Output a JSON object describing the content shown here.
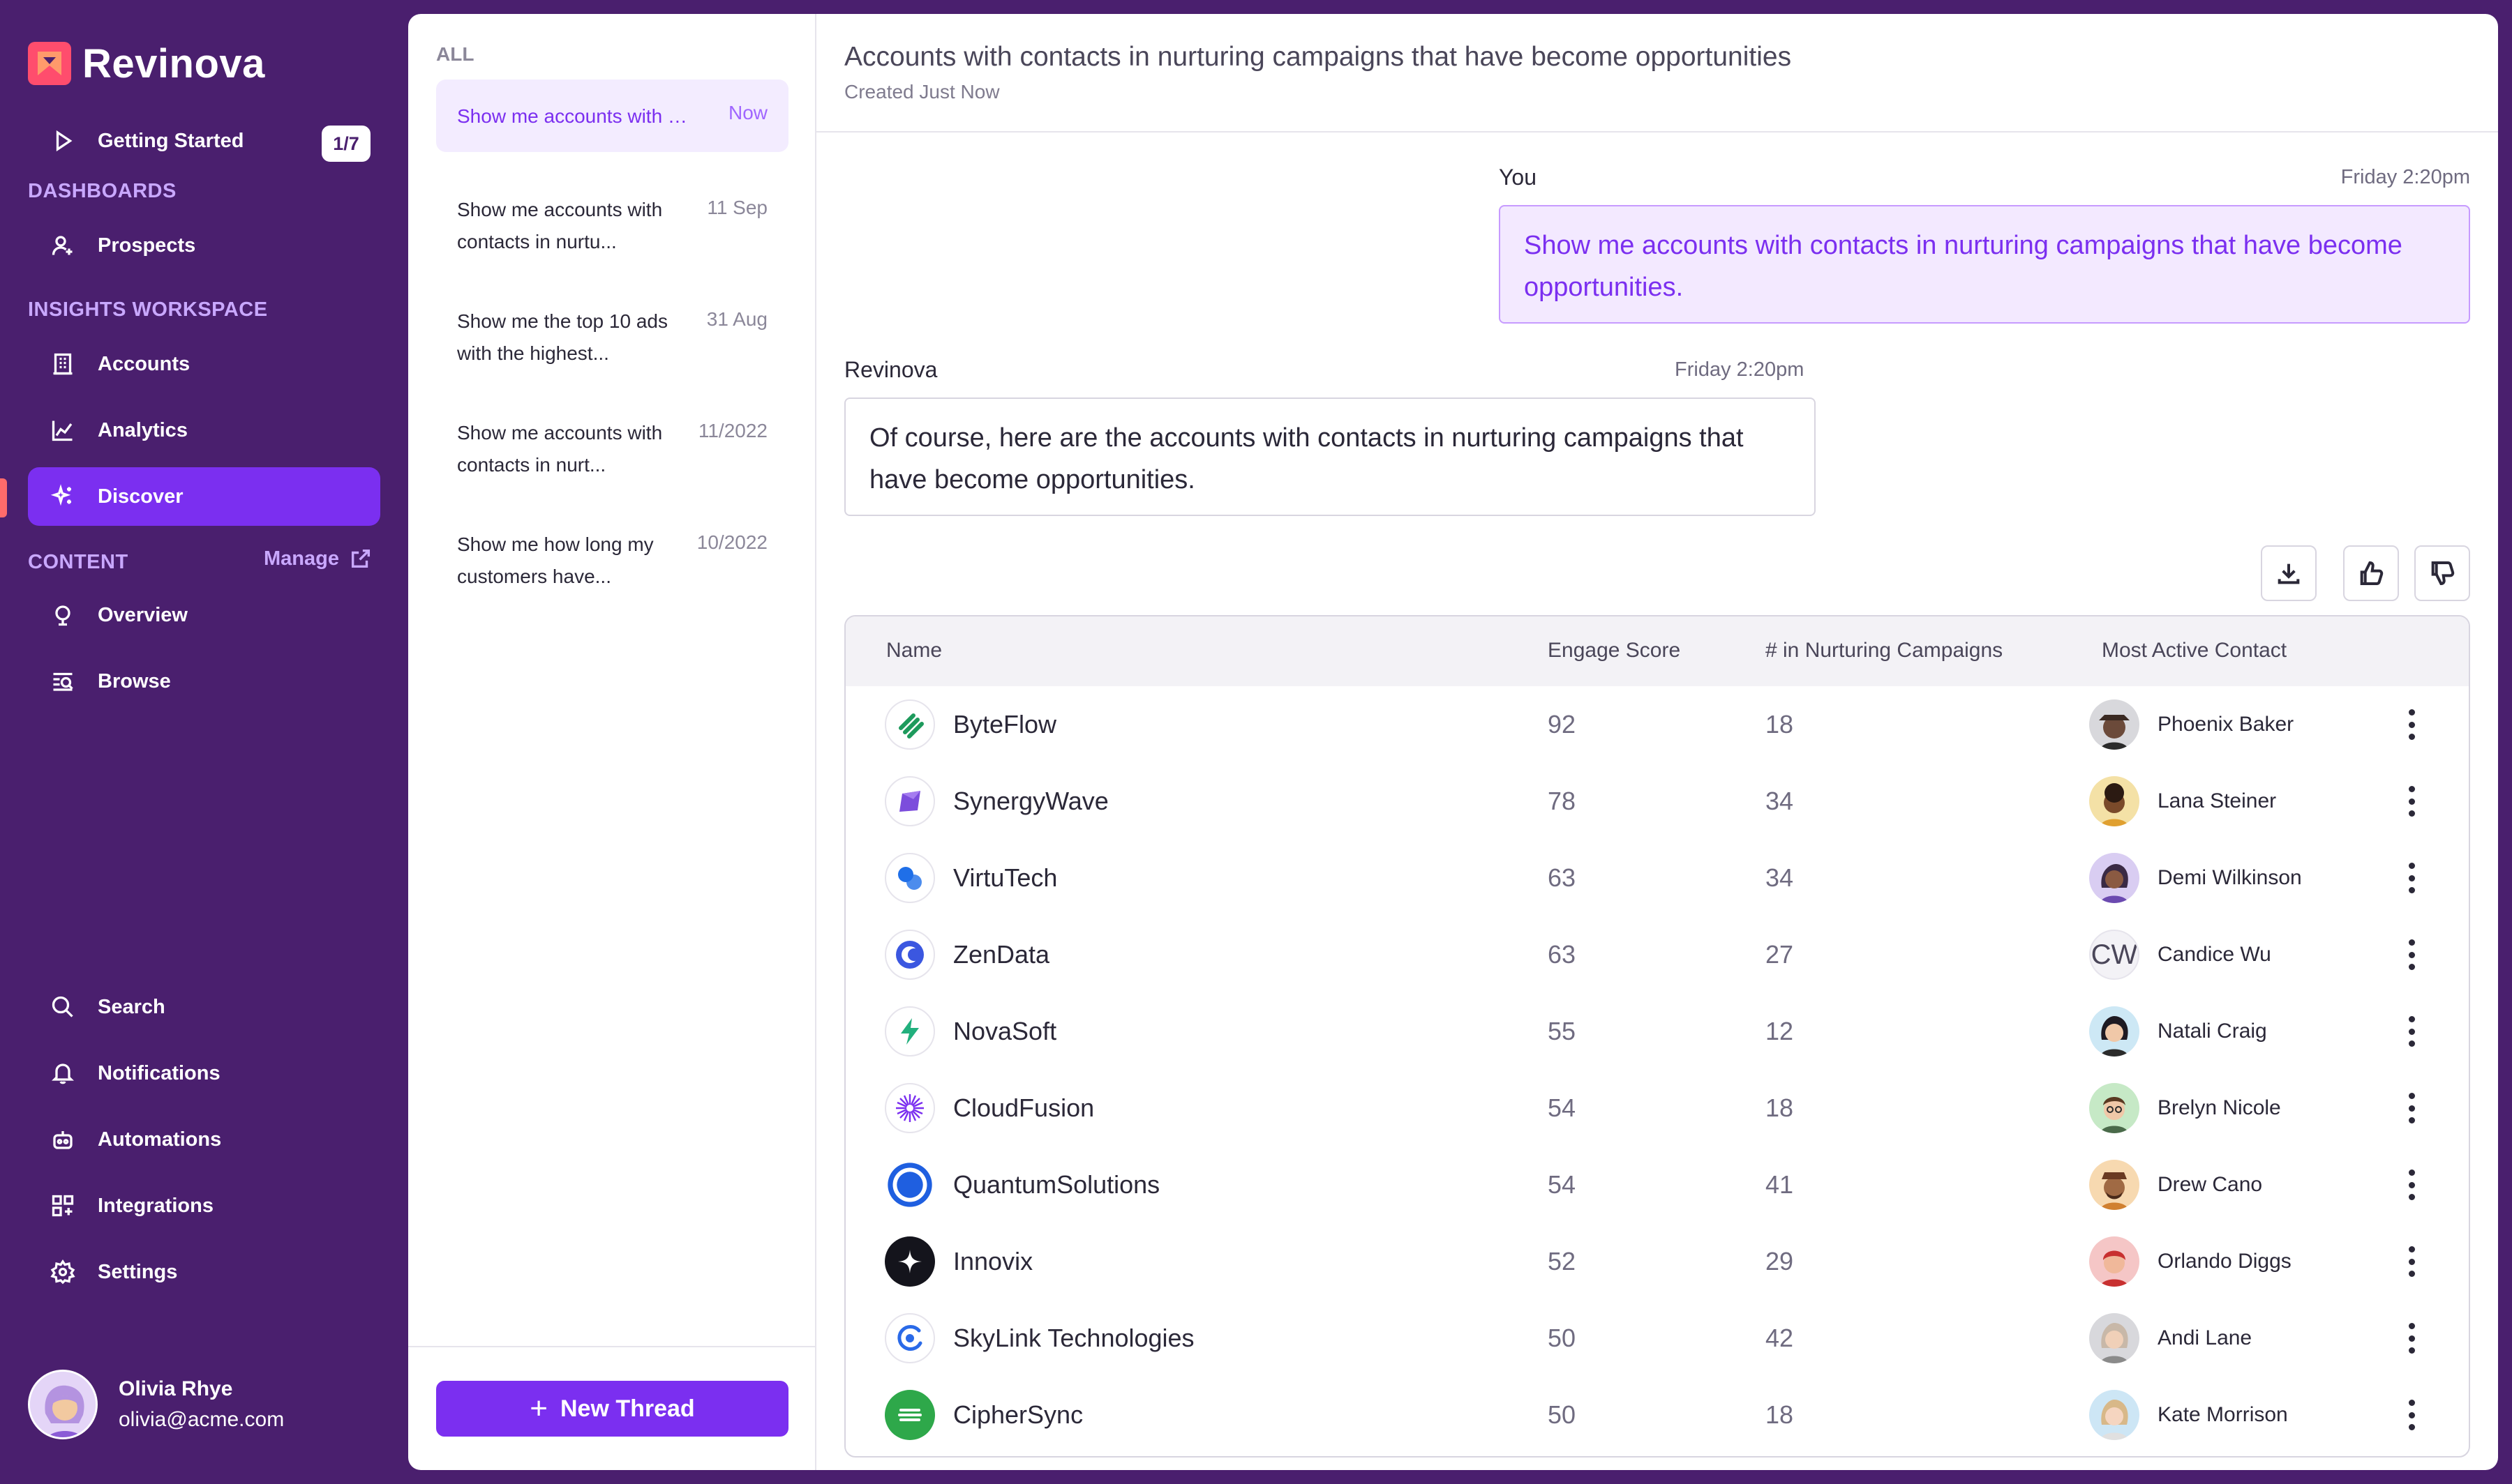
{
  "app": {
    "name": "Revinova",
    "brand_color": "#7b2ff0"
  },
  "sidebar": {
    "getting_started": {
      "label": "Getting Started",
      "badge": "1/7"
    },
    "sections": {
      "dashboards": "DASHBOARDS",
      "insights": "INSIGHTS WORKSPACE",
      "content": "CONTENT",
      "manage": "Manage"
    },
    "items": {
      "prospects": "Prospects",
      "accounts": "Accounts",
      "analytics": "Analytics",
      "discover": "Discover",
      "overview": "Overview",
      "browse": "Browse",
      "search": "Search",
      "notifications": "Notifications",
      "automations": "Automations",
      "integrations": "Integrations",
      "settings": "Settings"
    },
    "user": {
      "name": "Olivia Rhye",
      "email": "olivia@acme.com"
    }
  },
  "threads": {
    "header": "ALL",
    "items": [
      {
        "title": "Show me accounts with contacts in nurturing campaigns",
        "date": "Now"
      },
      {
        "title": "Show me accounts with contacts in nurtu...",
        "date": "11 Sep"
      },
      {
        "title": "Show me the top 10 ads with the highest...",
        "date": "31 Aug"
      },
      {
        "title": "Show me accounts with contacts in nurt...",
        "date": "11/2022"
      },
      {
        "title": "Show me how long my customers have...",
        "date": "10/2022"
      }
    ],
    "new_thread_label": "New Thread"
  },
  "main": {
    "title": "Accounts with contacts in nurturing campaigns that have become opportunities",
    "subtitle": "Created Just Now",
    "user_msg": {
      "author": "You",
      "time": "Friday 2:20pm",
      "text": "Show me accounts with contacts in nurturing campaigns that have become opportunities."
    },
    "bot_msg": {
      "author": "Revinova",
      "time": "Friday 2:20pm",
      "text": "Of course, here are the accounts with contacts in nurturing campaigns that have become opportunities."
    },
    "table": {
      "columns": [
        "Name",
        "Engage Score",
        "# in Nurturing Campaigns",
        "Most Active Contact"
      ],
      "rows": [
        {
          "name": "ByteFlow",
          "score": "92",
          "campaigns": "18",
          "contact": "Phoenix Baker"
        },
        {
          "name": "SynergyWave",
          "score": "78",
          "campaigns": "34",
          "contact": "Lana Steiner"
        },
        {
          "name": "VirtuTech",
          "score": "63",
          "campaigns": "34",
          "contact": "Demi Wilkinson"
        },
        {
          "name": "ZenData",
          "score": "63",
          "campaigns": "27",
          "contact": "Candice Wu",
          "initials": "CW"
        },
        {
          "name": "NovaSoft",
          "score": "55",
          "campaigns": "12",
          "contact": "Natali Craig"
        },
        {
          "name": "CloudFusion",
          "score": "54",
          "campaigns": "18",
          "contact": "Brelyn Nicole"
        },
        {
          "name": "QuantumSolutions",
          "score": "54",
          "campaigns": "41",
          "contact": "Drew Cano"
        },
        {
          "name": "Innovix",
          "score": "52",
          "campaigns": "29",
          "contact": "Orlando Diggs"
        },
        {
          "name": "SkyLink Technologies",
          "score": "50",
          "campaigns": "42",
          "contact": "Andi Lane"
        },
        {
          "name": "CipherSync",
          "score": "50",
          "campaigns": "18",
          "contact": "Kate Morrison"
        }
      ]
    }
  }
}
